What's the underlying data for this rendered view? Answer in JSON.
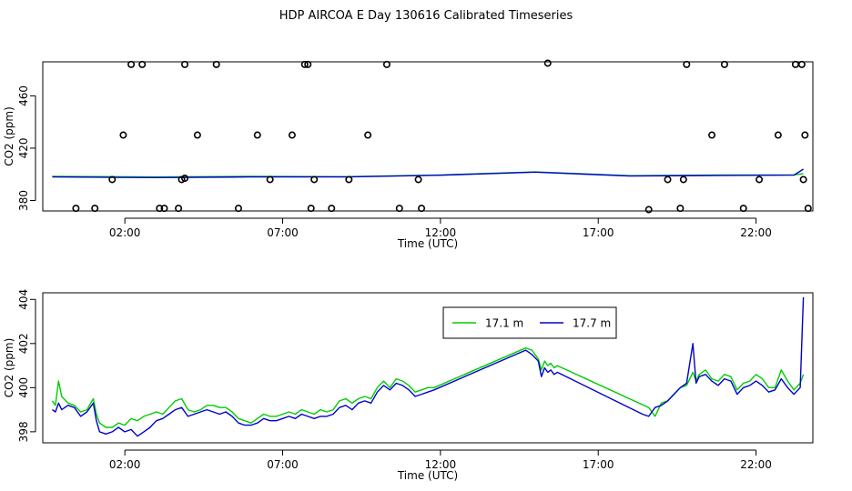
{
  "title": "HDP AIRCOA E  Day 130616  Calibrated Timeseries",
  "chart_data": [
    {
      "type": "scatter",
      "xlabel": "Time (UTC)",
      "ylabel": "CO2 (ppm)",
      "xlim": [
        -0.6,
        23.8
      ],
      "ylim": [
        372,
        486
      ],
      "x_ticks": [
        2,
        7,
        12,
        17,
        22
      ],
      "x_tick_labels": [
        "02:00",
        "07:00",
        "12:00",
        "17:00",
        "22:00"
      ],
      "y_ticks": [
        380,
        420,
        460
      ],
      "y_tick_labels": [
        "380",
        "420",
        "460"
      ],
      "grid": false,
      "series": [
        {
          "kind": "points",
          "color": "#000000",
          "x": [
            1.05,
            1.6,
            2.55,
            3.25,
            3.9,
            4.3,
            4.9,
            5.6,
            6.6,
            7.3,
            7.8,
            8.0,
            8.55,
            9.1,
            9.7,
            10.7,
            11.3,
            20.6,
            21.0,
            21.6,
            22.1,
            22.7,
            23.25,
            23.5
          ],
          "y": [
            374,
            396,
            484,
            374,
            397,
            430,
            484,
            374,
            396,
            430,
            484,
            396,
            374,
            396,
            430,
            374,
            396,
            430,
            484,
            374,
            396,
            430,
            484,
            396
          ]
        },
        {
          "kind": "points",
          "color": "#000000",
          "x": [
            0.45,
            1.95,
            2.2,
            3.1,
            3.7,
            3.8,
            3.9,
            6.2,
            7.7,
            7.9,
            10.3,
            11.4,
            15.4,
            18.6,
            19.2,
            19.6,
            19.7,
            19.8,
            23.45,
            23.55,
            23.65
          ],
          "y": [
            374,
            430,
            484,
            374,
            374,
            396,
            484,
            430,
            484,
            374,
            484,
            374,
            485,
            373,
            396,
            374,
            396,
            484,
            484,
            430,
            374
          ]
        },
        {
          "name": "17.1 m",
          "kind": "line",
          "color": "#00cc00",
          "x": [
            -0.3,
            3,
            6,
            9,
            12,
            15,
            18,
            21,
            23.2,
            23.5
          ],
          "y": [
            398.5,
            398,
            398.5,
            398.2,
            399.5,
            401.8,
            399,
            399.5,
            399.6,
            400.5
          ]
        },
        {
          "name": "17.7 m",
          "kind": "line",
          "color": "#0000cc",
          "x": [
            -0.3,
            3,
            6,
            9,
            12,
            15,
            18,
            21,
            23.2,
            23.5
          ],
          "y": [
            398,
            397.5,
            398,
            398,
            399.3,
            401.7,
            398.7,
            399.2,
            399.4,
            404
          ]
        }
      ]
    },
    {
      "type": "line",
      "xlabel": "Time (UTC)",
      "ylabel": "CO2 (ppm)",
      "xlim": [
        -0.6,
        23.8
      ],
      "ylim": [
        397.5,
        404.3
      ],
      "x_ticks": [
        2,
        7,
        12,
        17,
        22
      ],
      "x_tick_labels": [
        "02:00",
        "07:00",
        "12:00",
        "17:00",
        "22:00"
      ],
      "y_ticks": [
        398,
        400,
        402,
        404
      ],
      "y_tick_labels": [
        "398",
        "400",
        "402",
        "404"
      ],
      "grid": false,
      "legend": "top-center",
      "series": [
        {
          "name": "17.1 m",
          "color": "#00cc00",
          "x": [
            -0.3,
            -0.2,
            -0.1,
            0.0,
            0.2,
            0.4,
            0.6,
            0.8,
            1.0,
            1.1,
            1.2,
            1.4,
            1.6,
            1.8,
            2.0,
            2.2,
            2.4,
            2.6,
            2.8,
            3.0,
            3.2,
            3.4,
            3.6,
            3.8,
            4.0,
            4.2,
            4.4,
            4.6,
            4.8,
            5.0,
            5.2,
            5.4,
            5.6,
            5.8,
            6.0,
            6.2,
            6.4,
            6.6,
            6.8,
            7.0,
            7.2,
            7.4,
            7.6,
            7.8,
            8.0,
            8.2,
            8.4,
            8.6,
            8.8,
            9.0,
            9.2,
            9.4,
            9.6,
            9.8,
            10.0,
            10.2,
            10.4,
            10.6,
            10.8,
            11.0,
            11.2,
            11.4,
            11.6,
            11.8,
            14.7,
            14.9,
            15.1,
            15.2,
            15.3,
            15.4,
            15.5,
            15.6,
            15.7,
            18.6,
            18.8,
            19.0,
            19.2,
            19.4,
            19.6,
            19.8,
            20.0,
            20.1,
            20.2,
            20.4,
            20.6,
            20.8,
            21.0,
            21.2,
            21.4,
            21.6,
            21.8,
            22.0,
            22.2,
            22.4,
            22.6,
            22.8,
            23.0,
            23.2,
            23.4,
            23.5
          ],
          "y": [
            399.4,
            399.2,
            400.3,
            399.6,
            399.3,
            399.2,
            398.9,
            399.0,
            399.5,
            398.8,
            398.4,
            398.2,
            398.2,
            398.4,
            398.3,
            398.6,
            398.5,
            398.7,
            398.8,
            398.9,
            398.8,
            399.1,
            399.4,
            399.5,
            399.0,
            398.9,
            399.0,
            399.2,
            399.2,
            399.1,
            399.1,
            398.9,
            398.6,
            398.5,
            398.4,
            398.6,
            398.8,
            398.7,
            398.7,
            398.8,
            398.9,
            398.8,
            399.0,
            398.9,
            398.8,
            399.0,
            398.9,
            399.0,
            399.4,
            399.5,
            399.3,
            399.5,
            399.6,
            399.5,
            400.0,
            400.3,
            400.0,
            400.4,
            400.3,
            400.1,
            399.8,
            399.9,
            400.0,
            400.0,
            401.8,
            401.7,
            401.3,
            400.8,
            401.2,
            401.0,
            401.1,
            400.9,
            401.0,
            399.1,
            398.7,
            399.3,
            399.4,
            399.7,
            400.0,
            400.1,
            400.7,
            400.3,
            400.6,
            400.8,
            400.4,
            400.3,
            400.6,
            400.5,
            399.9,
            400.2,
            400.3,
            400.6,
            400.4,
            400.0,
            400.0,
            400.8,
            400.3,
            399.9,
            400.2,
            400.6
          ]
        },
        {
          "name": "17.7 m",
          "color": "#0000cc",
          "x": [
            -0.3,
            -0.2,
            -0.1,
            0.0,
            0.2,
            0.4,
            0.6,
            0.8,
            1.0,
            1.1,
            1.2,
            1.4,
            1.6,
            1.8,
            2.0,
            2.2,
            2.4,
            2.6,
            2.8,
            3.0,
            3.2,
            3.4,
            3.6,
            3.8,
            4.0,
            4.2,
            4.4,
            4.6,
            4.8,
            5.0,
            5.2,
            5.4,
            5.6,
            5.8,
            6.0,
            6.2,
            6.4,
            6.6,
            6.8,
            7.0,
            7.2,
            7.4,
            7.6,
            7.8,
            8.0,
            8.2,
            8.4,
            8.6,
            8.8,
            9.0,
            9.2,
            9.4,
            9.6,
            9.8,
            10.0,
            10.2,
            10.4,
            10.6,
            10.8,
            11.0,
            11.2,
            11.4,
            11.6,
            11.8,
            14.7,
            14.9,
            15.1,
            15.2,
            15.3,
            15.4,
            15.5,
            15.6,
            15.7,
            18.4,
            18.6,
            18.8,
            19.0,
            19.2,
            19.4,
            19.6,
            19.8,
            20.0,
            20.1,
            20.2,
            20.4,
            20.6,
            20.8,
            21.0,
            21.2,
            21.4,
            21.6,
            21.8,
            22.0,
            22.2,
            22.4,
            22.6,
            22.8,
            23.0,
            23.2,
            23.4,
            23.5
          ],
          "y": [
            399.0,
            398.9,
            399.3,
            399.0,
            399.2,
            399.1,
            398.7,
            398.9,
            399.3,
            398.5,
            398.0,
            397.9,
            398.0,
            398.2,
            398.0,
            398.1,
            397.8,
            398.0,
            398.2,
            398.5,
            398.6,
            398.8,
            399.0,
            399.1,
            398.7,
            398.8,
            398.9,
            399.0,
            398.9,
            398.8,
            398.9,
            398.7,
            398.4,
            398.3,
            398.3,
            398.4,
            398.6,
            398.5,
            398.5,
            398.6,
            398.7,
            398.6,
            398.8,
            398.7,
            398.6,
            398.7,
            398.7,
            398.8,
            399.1,
            399.2,
            399.0,
            399.3,
            399.4,
            399.3,
            399.8,
            400.1,
            399.9,
            400.2,
            400.1,
            399.9,
            399.6,
            399.7,
            399.8,
            399.9,
            401.7,
            401.5,
            401.2,
            400.5,
            400.9,
            400.7,
            400.8,
            400.6,
            400.7,
            398.8,
            398.7,
            399.1,
            399.2,
            399.4,
            399.7,
            400.0,
            400.2,
            402.0,
            400.2,
            400.5,
            400.6,
            400.3,
            400.1,
            400.4,
            400.3,
            399.7,
            400.0,
            400.1,
            400.3,
            400.1,
            399.8,
            399.9,
            400.4,
            400.0,
            399.7,
            400.0,
            404.1
          ]
        }
      ]
    }
  ]
}
